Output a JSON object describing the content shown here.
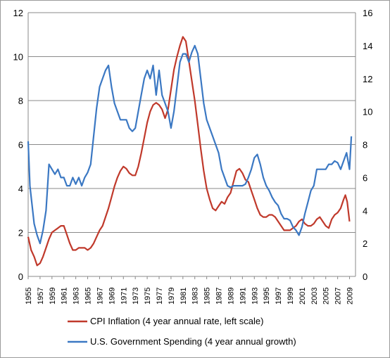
{
  "chart_data": {
    "type": "line",
    "left_axis": {
      "min": 0,
      "max": 12,
      "ticks": [
        "0",
        "2",
        "4",
        "6",
        "8",
        "10",
        "12"
      ]
    },
    "right_axis": {
      "min": 0,
      "max": 16,
      "ticks": [
        "0",
        "2",
        "4",
        "6",
        "8",
        "10",
        "12",
        "14",
        "16"
      ]
    },
    "x_range": [
      1955,
      2010
    ],
    "x_ticks": [
      "1955",
      "1957",
      "1959",
      "1961",
      "1963",
      "1965",
      "1967",
      "1969",
      "1971",
      "1973",
      "1975",
      "1977",
      "1979",
      "1981",
      "1983",
      "1985",
      "1987",
      "1989",
      "1991",
      "1993",
      "1995",
      "1997",
      "1999",
      "2001",
      "2003",
      "2005",
      "2007",
      "2009"
    ],
    "grid": "horizontal",
    "legend_position": "bottom",
    "series": [
      {
        "name": "CPI Inflation (4 year annual rate, left scale)",
        "axis": "left",
        "color": "#c0392b",
        "x": [
          1955.0,
          1955.5,
          1956.0,
          1956.5,
          1957.0,
          1957.5,
          1958.0,
          1958.5,
          1959.0,
          1959.5,
          1960.0,
          1960.5,
          1961.0,
          1961.5,
          1962.0,
          1962.5,
          1963.0,
          1963.5,
          1964.0,
          1964.5,
          1965.0,
          1965.5,
          1966.0,
          1966.5,
          1967.0,
          1967.5,
          1968.0,
          1968.5,
          1969.0,
          1969.5,
          1970.0,
          1970.5,
          1971.0,
          1971.5,
          1972.0,
          1972.5,
          1973.0,
          1973.5,
          1974.0,
          1974.5,
          1975.0,
          1975.5,
          1976.0,
          1976.5,
          1977.0,
          1977.5,
          1978.0,
          1978.5,
          1979.0,
          1979.5,
          1980.0,
          1980.5,
          1981.0,
          1981.5,
          1982.0,
          1982.5,
          1983.0,
          1983.5,
          1984.0,
          1984.5,
          1985.0,
          1985.5,
          1986.0,
          1986.5,
          1987.0,
          1987.5,
          1988.0,
          1988.5,
          1989.0,
          1989.5,
          1990.0,
          1990.5,
          1991.0,
          1991.5,
          1992.0,
          1992.5,
          1993.0,
          1993.5,
          1994.0,
          1994.5,
          1995.0,
          1995.5,
          1996.0,
          1996.5,
          1997.0,
          1997.5,
          1998.0,
          1998.5,
          1999.0,
          1999.5,
          2000.0,
          2000.5,
          2001.0,
          2001.5,
          2002.0,
          2002.5,
          2003.0,
          2003.5,
          2004.0,
          2004.5,
          2005.0,
          2005.5,
          2006.0,
          2006.5,
          2007.0,
          2007.5,
          2008.0,
          2008.3,
          2008.6,
          2009.0
        ],
        "values": [
          1.8,
          1.2,
          0.9,
          0.5,
          0.6,
          0.9,
          1.3,
          1.7,
          2.0,
          2.1,
          2.2,
          2.3,
          2.3,
          1.9,
          1.5,
          1.2,
          1.2,
          1.3,
          1.3,
          1.3,
          1.2,
          1.3,
          1.5,
          1.8,
          2.1,
          2.3,
          2.7,
          3.1,
          3.6,
          4.1,
          4.5,
          4.8,
          5.0,
          4.9,
          4.7,
          4.6,
          4.6,
          5.0,
          5.6,
          6.3,
          7.0,
          7.5,
          7.8,
          7.9,
          7.8,
          7.6,
          7.2,
          7.6,
          8.5,
          9.4,
          10.0,
          10.5,
          10.9,
          10.7,
          9.8,
          8.9,
          8.0,
          6.9,
          5.8,
          4.8,
          4.0,
          3.5,
          3.1,
          3.0,
          3.2,
          3.4,
          3.3,
          3.6,
          3.8,
          4.3,
          4.8,
          4.9,
          4.7,
          4.4,
          4.3,
          3.9,
          3.5,
          3.1,
          2.8,
          2.7,
          2.7,
          2.8,
          2.8,
          2.7,
          2.5,
          2.3,
          2.1,
          2.1,
          2.1,
          2.2,
          2.3,
          2.5,
          2.6,
          2.4,
          2.3,
          2.3,
          2.4,
          2.6,
          2.7,
          2.5,
          2.3,
          2.2,
          2.6,
          2.8,
          2.9,
          3.1,
          3.5,
          3.7,
          3.4,
          2.5
        ]
      },
      {
        "name": "U.S. Government Spending (4 year annual growth)",
        "axis": "right",
        "color": "#3b78c3",
        "x": [
          1955.0,
          1955.3,
          1955.6,
          1956.0,
          1956.5,
          1957.0,
          1957.5,
          1958.0,
          1958.5,
          1959.0,
          1959.5,
          1960.0,
          1960.5,
          1961.0,
          1961.5,
          1962.0,
          1962.5,
          1963.0,
          1963.5,
          1964.0,
          1964.5,
          1965.0,
          1965.5,
          1966.0,
          1966.5,
          1967.0,
          1967.5,
          1968.0,
          1968.5,
          1969.0,
          1969.5,
          1970.0,
          1970.5,
          1971.0,
          1971.5,
          1972.0,
          1972.5,
          1973.0,
          1973.5,
          1974.0,
          1974.5,
          1975.0,
          1975.5,
          1976.0,
          1976.5,
          1977.0,
          1977.5,
          1978.0,
          1978.5,
          1979.0,
          1979.5,
          1980.0,
          1980.5,
          1981.0,
          1981.5,
          1982.0,
          1982.5,
          1983.0,
          1983.5,
          1984.0,
          1984.5,
          1985.0,
          1985.5,
          1986.0,
          1986.5,
          1987.0,
          1987.5,
          1988.0,
          1988.5,
          1989.0,
          1989.5,
          1990.0,
          1990.5,
          1991.0,
          1991.5,
          1992.0,
          1992.5,
          1993.0,
          1993.5,
          1994.0,
          1994.5,
          1995.0,
          1995.5,
          1996.0,
          1996.5,
          1997.0,
          1997.5,
          1998.0,
          1998.5,
          1999.0,
          1999.5,
          2000.0,
          2000.5,
          2001.0,
          2001.5,
          2002.0,
          2002.5,
          2003.0,
          2003.5,
          2004.0,
          2004.5,
          2005.0,
          2005.5,
          2006.0,
          2006.5,
          2007.0,
          2007.5,
          2008.0,
          2008.5,
          2009.0,
          2009.3
        ],
        "values": [
          8.2,
          5.5,
          4.5,
          3.2,
          2.5,
          2.0,
          2.8,
          4.0,
          6.8,
          6.5,
          6.2,
          6.5,
          6.0,
          6.0,
          5.5,
          5.5,
          6.0,
          5.6,
          6.0,
          5.5,
          6.0,
          6.3,
          6.8,
          8.5,
          10.2,
          11.5,
          12.0,
          12.5,
          12.8,
          11.5,
          10.5,
          10.0,
          9.5,
          9.5,
          9.5,
          9.0,
          8.8,
          9.0,
          10.0,
          11.0,
          12.0,
          12.5,
          12.0,
          12.8,
          11.0,
          12.5,
          11.0,
          10.5,
          10.0,
          9.0,
          10.0,
          11.5,
          13.0,
          13.5,
          13.5,
          13.0,
          13.6,
          14.0,
          13.5,
          12.0,
          10.5,
          9.5,
          9.0,
          8.5,
          8.0,
          7.5,
          6.5,
          6.0,
          5.5,
          5.4,
          5.5,
          5.5,
          5.5,
          5.5,
          5.6,
          6.0,
          6.5,
          7.2,
          7.4,
          6.8,
          6.0,
          5.5,
          5.2,
          4.8,
          4.5,
          4.3,
          3.8,
          3.5,
          3.5,
          3.4,
          3.0,
          2.8,
          2.5,
          3.0,
          3.8,
          4.5,
          5.2,
          5.5,
          6.5,
          6.5,
          6.5,
          6.5,
          6.8,
          6.8,
          7.0,
          6.9,
          6.5,
          7.0,
          7.5,
          6.5,
          8.5
        ]
      }
    ]
  }
}
